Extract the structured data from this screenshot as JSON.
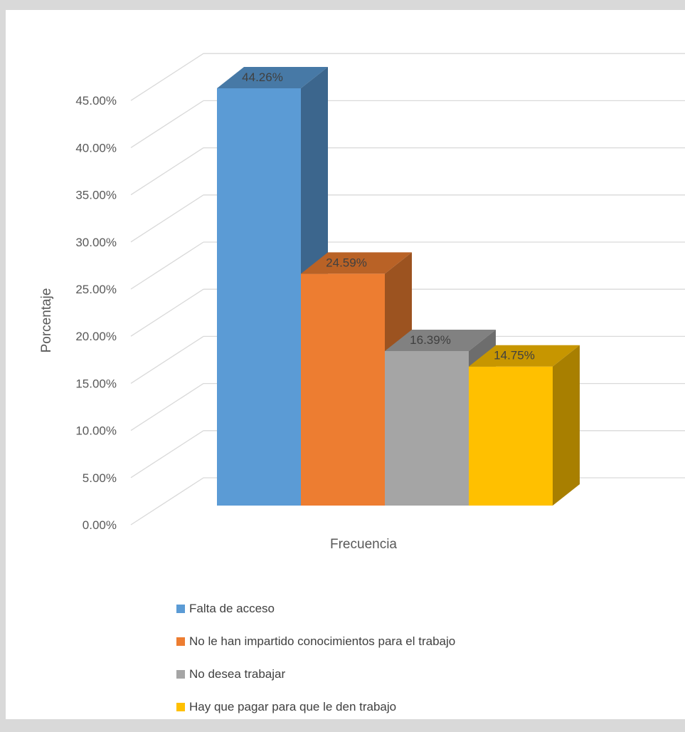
{
  "chart_data": {
    "type": "bar",
    "style": "3d-clustered-column",
    "ylabel": "Porcentaje",
    "xlabel": "Frecuencia",
    "categories": [
      "Frecuencia"
    ],
    "ylim": [
      0,
      45
    ],
    "yticks": [
      "0.00%",
      "5.00%",
      "10.00%",
      "15.00%",
      "20.00%",
      "25.00%",
      "30.00%",
      "35.00%",
      "40.00%",
      "45.00%"
    ],
    "grid": true,
    "legend_position": "bottom",
    "series": [
      {
        "name": "Falta de acceso",
        "values": [
          44.26
        ],
        "label": "44.26%",
        "color": "#5b9bd5"
      },
      {
        "name": "No le han impartido conocimientos para el trabajo",
        "values": [
          24.59
        ],
        "label": "24.59%",
        "color": "#ed7d31"
      },
      {
        "name": "No desea trabajar",
        "values": [
          16.39
        ],
        "label": "16.39%",
        "color": "#a5a5a5"
      },
      {
        "name": "Hay que pagar para que le den trabajo",
        "values": [
          14.75
        ],
        "label": "14.75%",
        "color": "#ffc000"
      }
    ]
  }
}
